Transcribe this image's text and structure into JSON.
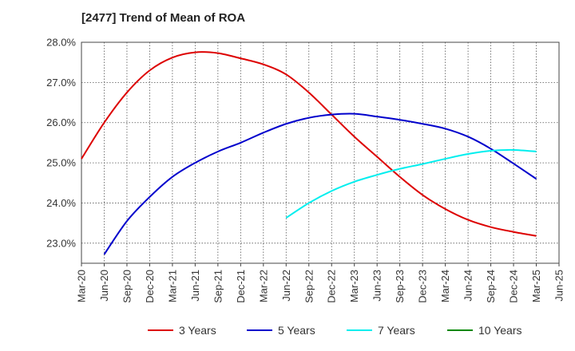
{
  "chart_data": {
    "type": "line",
    "title": "[2477]  Trend of Mean of ROA",
    "xlabel": "",
    "ylabel": "",
    "x": [
      "Mar-20",
      "Jun-20",
      "Sep-20",
      "Dec-20",
      "Mar-21",
      "Jun-21",
      "Sep-21",
      "Dec-21",
      "Mar-22",
      "Jun-22",
      "Sep-22",
      "Dec-22",
      "Mar-23",
      "Jun-23",
      "Sep-23",
      "Dec-23",
      "Mar-24",
      "Jun-24",
      "Sep-24",
      "Dec-24",
      "Mar-25",
      "Jun-25"
    ],
    "ylim": [
      22.5,
      28.0
    ],
    "yticks": [
      23.0,
      24.0,
      25.0,
      26.0,
      27.0,
      28.0
    ],
    "ytick_labels": [
      "23.0%",
      "24.0%",
      "25.0%",
      "26.0%",
      "27.0%",
      "28.0%"
    ],
    "grid": true,
    "legend_position": "bottom",
    "series": [
      {
        "name": "3 Years",
        "color": "#dd0000",
        "values": [
          25.1,
          26.0,
          26.75,
          27.3,
          27.62,
          27.75,
          27.73,
          27.6,
          27.45,
          27.2,
          26.75,
          26.2,
          25.65,
          25.15,
          24.65,
          24.2,
          23.85,
          23.58,
          23.4,
          23.28,
          23.18,
          null
        ]
      },
      {
        "name": "5 Years",
        "color": "#0000cc",
        "values": [
          null,
          22.72,
          23.55,
          24.15,
          24.65,
          25.0,
          25.28,
          25.5,
          25.75,
          25.97,
          26.12,
          26.2,
          26.22,
          26.15,
          26.07,
          25.97,
          25.85,
          25.65,
          25.35,
          24.98,
          24.6,
          null
        ]
      },
      {
        "name": "7 Years",
        "color": "#00eeee",
        "values": [
          null,
          null,
          null,
          null,
          null,
          null,
          null,
          null,
          null,
          23.63,
          24.0,
          24.3,
          24.53,
          24.7,
          24.85,
          24.97,
          25.1,
          25.22,
          25.3,
          25.32,
          25.28,
          null
        ]
      },
      {
        "name": "10 Years",
        "color": "#008800",
        "values": [
          null,
          null,
          null,
          null,
          null,
          null,
          null,
          null,
          null,
          null,
          null,
          null,
          null,
          null,
          null,
          null,
          null,
          null,
          null,
          null,
          null,
          null
        ]
      }
    ]
  }
}
